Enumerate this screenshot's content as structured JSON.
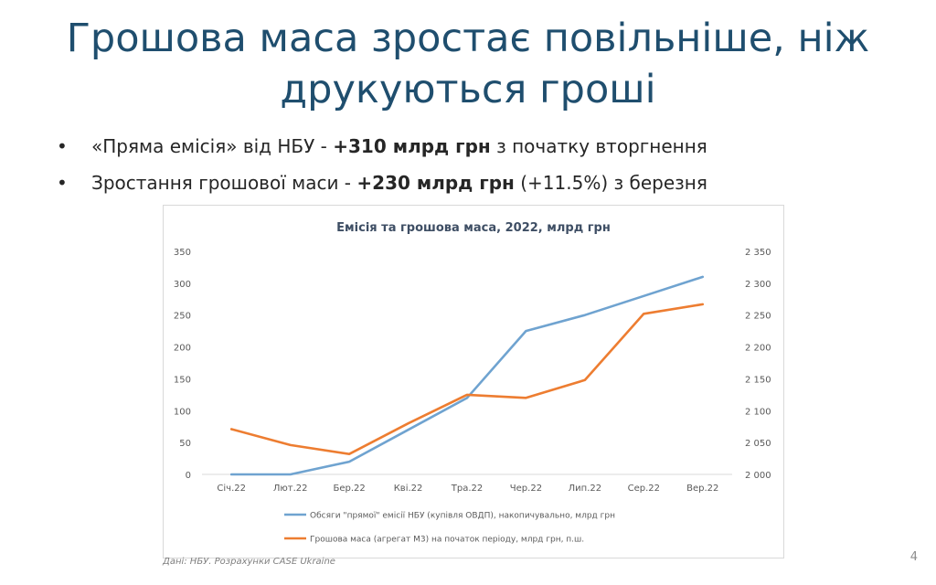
{
  "slide": {
    "title_line1": "Грошова маса зростає повільніше, ніж",
    "title_line2": "друкуються гроші",
    "bullet_marker": "•",
    "bullets": [
      {
        "prefix": "«Пряма емісія» від НБУ - ",
        "bold": "+310 млрд грн",
        "suffix": " з початку вторгнення"
      },
      {
        "prefix": "Зростання грошової маси - ",
        "bold": "+230 млрд грн",
        "suffix": " (+11.5%) з березня"
      }
    ],
    "source": "Дані: НБУ. Розрахунки CASE Ukraine",
    "page_number": "4"
  },
  "chart_data": {
    "type": "line",
    "title": "Емісія та грошова маса, 2022, млрд грн",
    "categories": [
      "Січ.22",
      "Лют.22",
      "Бер.22",
      "Кві.22",
      "Тра.22",
      "Чер.22",
      "Лип.22",
      "Сер.22",
      "Вер.22"
    ],
    "y_left": {
      "min": 0,
      "max": 350,
      "ticks": [
        0,
        50,
        100,
        150,
        200,
        250,
        300,
        350
      ],
      "tick_labels": [
        "0",
        "50",
        "100",
        "150",
        "200",
        "250",
        "300",
        "350"
      ]
    },
    "y_right": {
      "min": 2000,
      "max": 2350,
      "ticks": [
        2000,
        2050,
        2100,
        2150,
        2200,
        2250,
        2300,
        2350
      ],
      "tick_labels": [
        "2 000",
        "2 050",
        "2 100",
        "2 150",
        "2 200",
        "2 250",
        "2 300",
        "2 350"
      ]
    },
    "grid": false,
    "legend_position": "bottom",
    "series": [
      {
        "name": "Обсяги \"прямої\" емісії НБУ (купівля ОВДП), накопичувально, млрд грн",
        "axis": "left",
        "color": "#6fa3d0",
        "values": [
          0,
          0,
          20,
          70,
          120,
          225,
          250,
          280,
          310
        ]
      },
      {
        "name": "Грошова маса (агрегат М3) на початок періоду, млрд грн, п.ш.",
        "axis": "right",
        "color": "#ed7d31",
        "values": [
          2071,
          2046,
          2032,
          2080,
          2125,
          2120,
          2148,
          2252,
          2267
        ]
      }
    ]
  }
}
